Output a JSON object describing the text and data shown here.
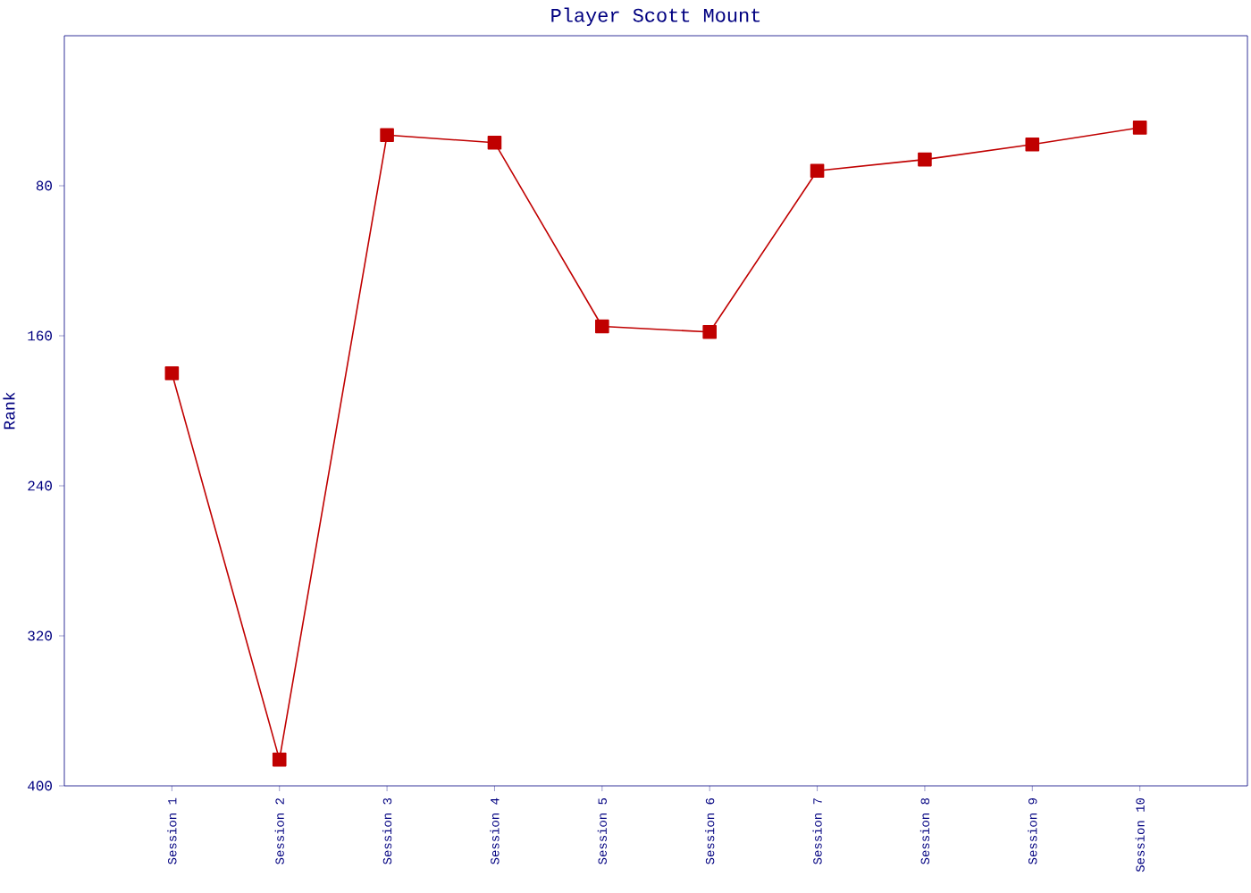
{
  "chart_data": {
    "type": "line",
    "title": "Player Scott Mount",
    "ylabel": "Rank",
    "categories": [
      "Session 1",
      "Session 2",
      "Session 3",
      "Session 4",
      "Session 5",
      "Session 6",
      "Session 7",
      "Session 8",
      "Session 9",
      "Session 10"
    ],
    "series": [
      {
        "color": "#c00000",
        "values": [
          180,
          386,
          53,
          57,
          155,
          158,
          72,
          66,
          58,
          49
        ]
      }
    ],
    "ylim": [
      400,
      0
    ],
    "yticks": [
      80,
      160,
      240,
      320,
      400
    ],
    "marker": "square",
    "line_style": "solid",
    "grid": false
  }
}
